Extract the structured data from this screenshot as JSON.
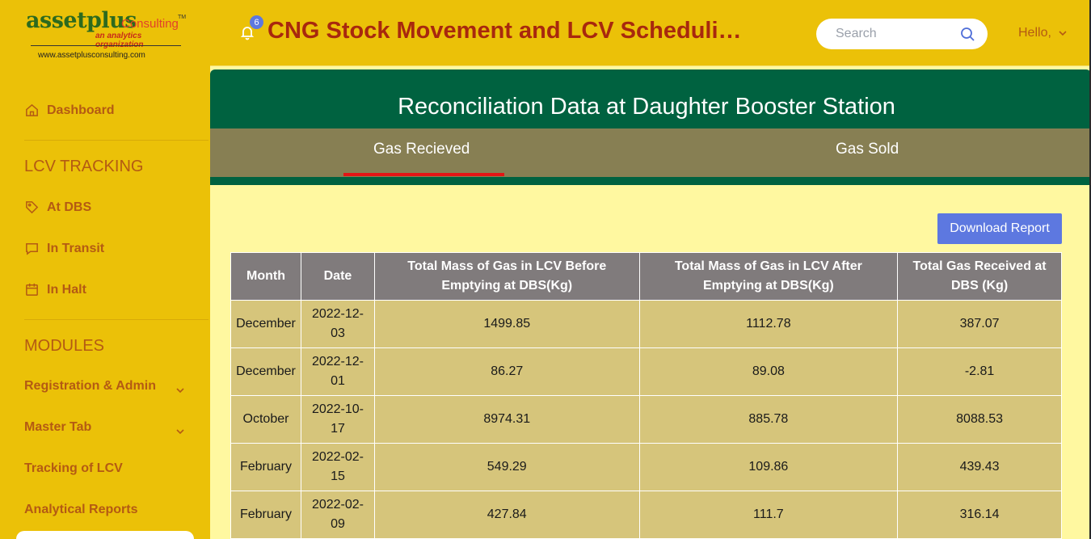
{
  "logo": {
    "brand": "assetplus",
    "consulting": "Consulting",
    "tm": "TM",
    "tagline": "an analytics organization",
    "url": "www.assetplusconsulting.com"
  },
  "sidebar": {
    "dashboard": "Dashboard",
    "section_lcv": "LCV TRACKING",
    "at_dbs": "At DBS",
    "in_transit": "In Transit",
    "in_halt": "In Halt",
    "section_modules": "MODULES",
    "registration": "Registration & Admin",
    "master_tab": "Master Tab",
    "tracking": "Tracking of LCV",
    "analytical": "Analytical Reports"
  },
  "header": {
    "notification_count": "6",
    "title": "CNG Stock Movement and LCV Scheduling Dashboard",
    "search_placeholder": "Search",
    "greeting": "Hello,"
  },
  "main": {
    "banner_title": "Reconciliation Data at Daughter Booster Station",
    "tabs": [
      "Gas Recieved",
      "Gas Sold"
    ],
    "active_tab": "Gas Recieved",
    "download_label": "Download Report",
    "table": {
      "headers": [
        "Month",
        "Date",
        "Total Mass of Gas in LCV Before Emptying at DBS(Kg)",
        "Total Mass of Gas in LCV After Emptying at DBS(Kg)",
        "Total Gas Received at DBS (Kg)"
      ],
      "rows": [
        [
          "December",
          "2022-12-03",
          "1499.85",
          "1112.78",
          "387.07"
        ],
        [
          "December",
          "2022-12-01",
          "86.27",
          "89.08",
          "-2.81"
        ],
        [
          "October",
          "2022-10-17",
          "8974.31",
          "885.78",
          "8088.53"
        ],
        [
          "February",
          "2022-02-15",
          "549.29",
          "109.86",
          "439.43"
        ],
        [
          "February",
          "2022-02-09",
          "427.84",
          "111.7",
          "316.14"
        ]
      ]
    }
  },
  "colors": {
    "sidebar_bg": "#ebc108",
    "accent_text": "#b45a13",
    "banner_green": "#006240",
    "tab_bar": "#877f53",
    "tab_active": "#e31515",
    "button_blue": "#5d78e0",
    "table_header": "#807b7c",
    "table_cell": "#d6c57b",
    "content_bg": "#fff8a0"
  }
}
